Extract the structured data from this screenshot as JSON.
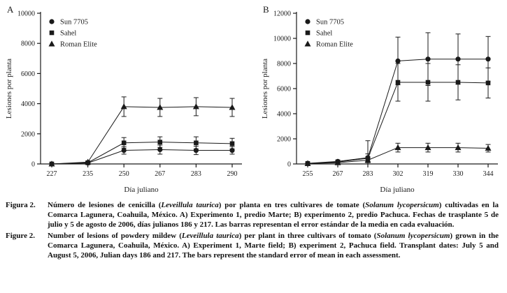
{
  "colors": {
    "ink": "#1a1a1a",
    "background": "#ffffff"
  },
  "chart_data": [
    {
      "panel_label": "A",
      "type": "line",
      "title": "",
      "xlabel": "Día juliano",
      "ylabel": "Lesiones por planta",
      "ylim": [
        0,
        10000
      ],
      "ytick_step": 2000,
      "grid": false,
      "legend_position": "top-left",
      "categories": [
        "227",
        "235",
        "250",
        "267",
        "283",
        "290"
      ],
      "series": [
        {
          "name": "Sun 7705",
          "marker": "circle",
          "values": [
            0,
            60,
            900,
            950,
            900,
            900
          ],
          "errors": [
            0,
            30,
            250,
            300,
            280,
            250
          ]
        },
        {
          "name": "Sahel",
          "marker": "square",
          "values": [
            0,
            80,
            1400,
            1450,
            1400,
            1350
          ],
          "errors": [
            0,
            40,
            350,
            350,
            400,
            350
          ]
        },
        {
          "name": "Roman Elite",
          "marker": "triangle",
          "values": [
            0,
            120,
            3800,
            3750,
            3800,
            3750
          ],
          "errors": [
            0,
            50,
            650,
            600,
            600,
            600
          ]
        }
      ]
    },
    {
      "panel_label": "B",
      "type": "line",
      "title": "",
      "xlabel": "Día juliano",
      "ylabel": "Lesiones por planta",
      "ylim": [
        0,
        12000
      ],
      "ytick_step": 2000,
      "grid": false,
      "legend_position": "top-left",
      "categories": [
        "255",
        "267",
        "283",
        "302",
        "319",
        "330",
        "344"
      ],
      "series": [
        {
          "name": "Sun 7705",
          "marker": "circle",
          "values": [
            50,
            200,
            500,
            8200,
            8350,
            8350,
            8350
          ],
          "errors": [
            30,
            120,
            300,
            1900,
            2100,
            2000,
            1800
          ]
        },
        {
          "name": "Sahel",
          "marker": "square",
          "values": [
            40,
            150,
            450,
            6500,
            6500,
            6500,
            6450
          ],
          "errors": [
            30,
            100,
            1400,
            1500,
            1500,
            1400,
            1200
          ]
        },
        {
          "name": "Roman Elite",
          "marker": "triangle",
          "values": [
            30,
            100,
            300,
            1300,
            1300,
            1300,
            1250
          ],
          "errors": [
            20,
            80,
            200,
            350,
            350,
            350,
            300
          ]
        }
      ]
    }
  ],
  "caption": {
    "es": {
      "label": "Figura 2.",
      "segments": [
        {
          "t": "Número de lesiones de cenicilla ("
        },
        {
          "t": "Leveillula taurica",
          "i": true
        },
        {
          "t": ") por planta en tres cultivares de tomate ("
        },
        {
          "t": "Solanum lycopersicum",
          "i": true
        },
        {
          "t": ") cultivadas en la Comarca Lagunera, Coahuila, México. A) Experimento 1, predio Marte; B) experimento 2, predio Pachuca. Fechas de trasplante 5 de julio y 5 de agosto de 2006, días julianos 186 y 217. Las barras representan el error estándar de la media en cada evaluación."
        }
      ]
    },
    "en": {
      "label": "Figure 2.",
      "segments": [
        {
          "t": "Number of lesions of powdery mildew ("
        },
        {
          "t": "Leveillula taurica",
          "i": true
        },
        {
          "t": ") per plant in three cultivars of tomato ("
        },
        {
          "t": "Solanum lycopersicum",
          "i": true
        },
        {
          "t": ") grown in the Comarca Lagunera, Coahuila, México. A) Experiment 1, Marte field; B) experiment 2, Pachuca field. Transplant dates: July 5 and August 5, 2006, Julian days 186 and 217. The bars represent the standard error of mean in each assessment."
        }
      ]
    }
  }
}
